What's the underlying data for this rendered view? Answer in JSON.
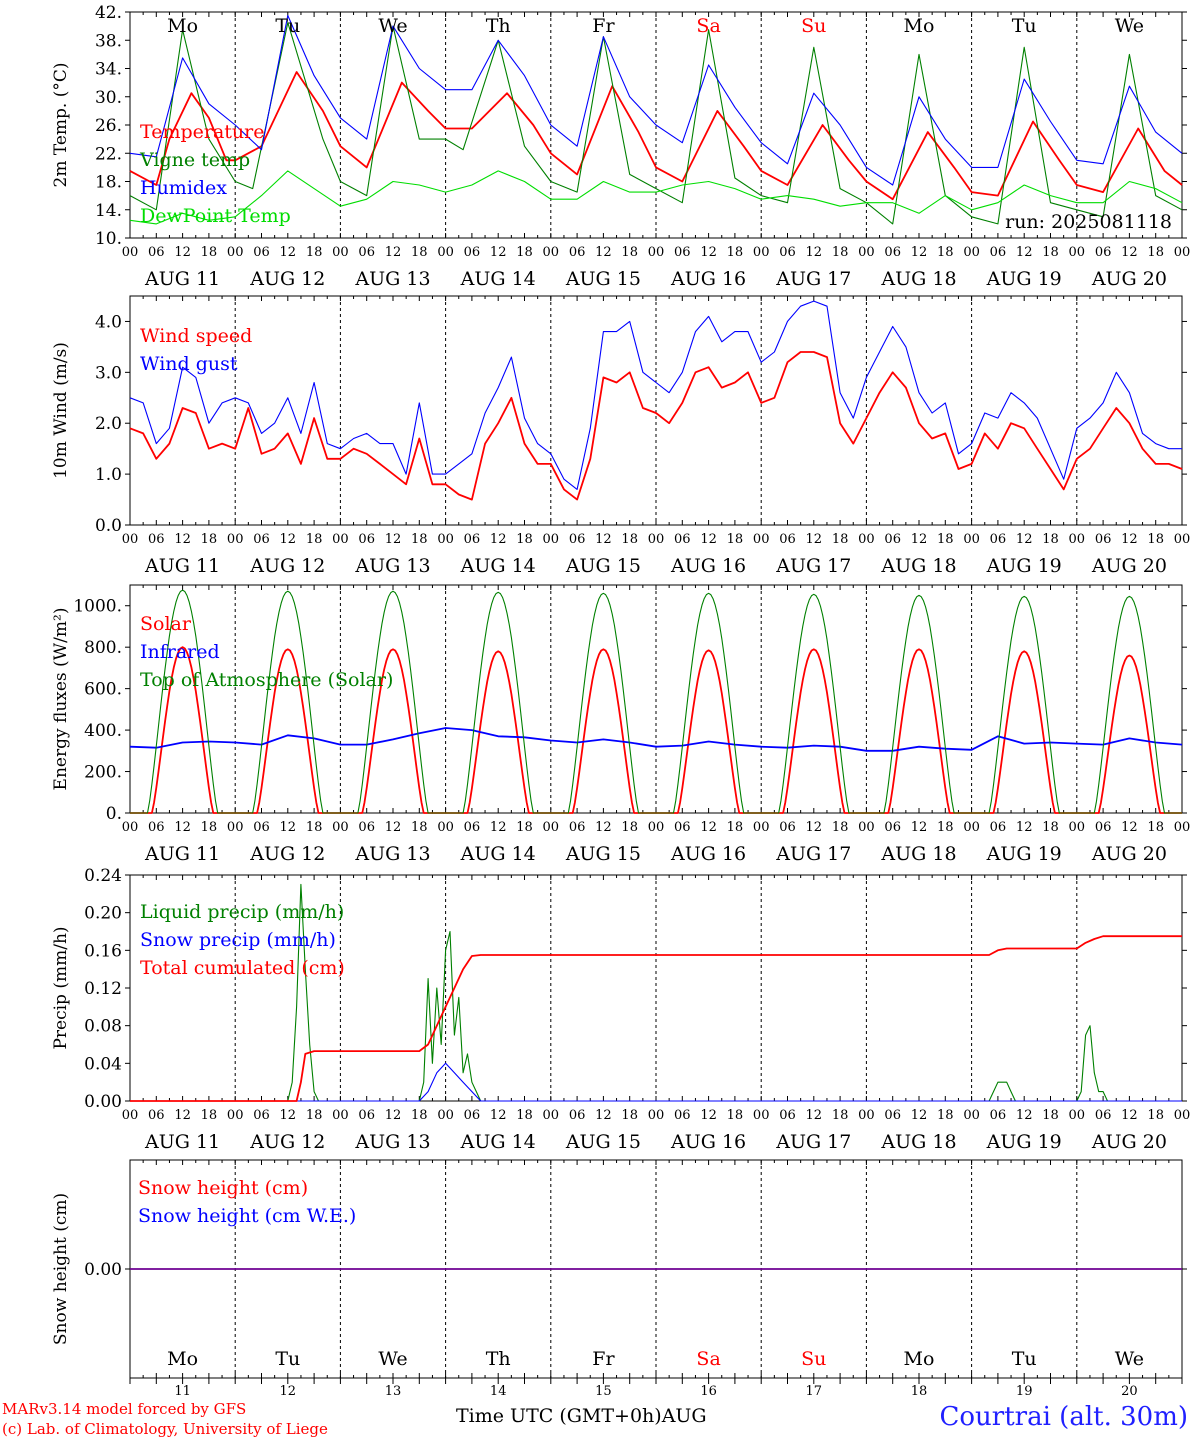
{
  "days": {
    "weekday_labels": [
      "Mo",
      "Tu",
      "We",
      "Th",
      "Fr",
      "Sa",
      "Su",
      "Mo",
      "Tu",
      "We"
    ],
    "weekend_flags": [
      false,
      false,
      false,
      false,
      false,
      true,
      true,
      false,
      false,
      false
    ],
    "date_labels": [
      "AUG 11",
      "AUG 12",
      "AUG 13",
      "AUG 14",
      "AUG 15",
      "AUG 16",
      "AUG 17",
      "AUG 18",
      "AUG 19",
      "AUG 20"
    ],
    "day_numbers": [
      "11",
      "12",
      "13",
      "14",
      "15",
      "16",
      "17",
      "18",
      "19",
      "20"
    ],
    "hour_ticks": [
      "00",
      "06",
      "12",
      "18"
    ],
    "final_hour": "00"
  },
  "colors": {
    "red": "#ff0000",
    "green": "#008000",
    "blue": "#0000ff",
    "lightgreen": "#00dd00",
    "grid": "#000000"
  },
  "footer": {
    "credit_line1": "MARv3.14 model forced by GFS",
    "credit_line2": "(c) Lab. of Climatology, University of Liege",
    "xaxis_title": "Time UTC (GMT+0h)AUG",
    "location": "Courtrai (alt. 30m)"
  },
  "chart_data": [
    {
      "type": "line",
      "ylabel": "2m Temp. (°C)",
      "ylim": [
        10,
        42
      ],
      "yticks": [
        "10.",
        "14.",
        "18.",
        "22.",
        "26.",
        "30.",
        "34.",
        "38.",
        "42."
      ],
      "run_label": "run: 2025081118",
      "x_unit": "hours since AUG 11 00 UTC",
      "series": [
        {
          "name": "Temperature",
          "color": "red",
          "x": [
            0,
            6,
            9,
            14,
            18,
            22,
            24,
            30,
            38,
            44,
            48,
            54,
            62,
            68,
            72,
            78,
            86,
            92,
            96,
            102,
            110,
            116,
            120,
            126,
            134,
            140,
            144,
            150,
            158,
            164,
            168,
            174,
            182,
            188,
            192,
            198,
            206,
            212,
            216,
            222,
            230,
            236,
            240
          ],
          "values": [
            19.5,
            17.5,
            24,
            30.5,
            27,
            21,
            21,
            23,
            33.5,
            28,
            23,
            20,
            32,
            28,
            25.5,
            25.5,
            30.5,
            26,
            22,
            19,
            31.5,
            25,
            20,
            18,
            28,
            23,
            19.5,
            17.5,
            26,
            21,
            18,
            15.5,
            25,
            20,
            16.5,
            16,
            26.5,
            21,
            17.5,
            16.5,
            25.5,
            19.5,
            17.5
          ]
        },
        {
          "name": "Vigne temp",
          "color": "green",
          "x": [
            0,
            6,
            12,
            18,
            24,
            28,
            36,
            44,
            48,
            54,
            60,
            66,
            72,
            76,
            84,
            90,
            96,
            102,
            108,
            114,
            120,
            126,
            132,
            138,
            144,
            150,
            156,
            162,
            168,
            174,
            180,
            186,
            192,
            198,
            204,
            210,
            216,
            222,
            228,
            234,
            240
          ],
          "values": [
            16,
            14,
            39.5,
            24,
            18,
            17,
            40.5,
            24,
            18,
            16,
            40,
            24,
            24,
            22.5,
            38,
            23,
            18,
            16.5,
            38.5,
            19,
            17,
            15,
            39.5,
            18.5,
            16,
            15,
            37,
            17,
            15,
            12,
            36,
            16,
            13,
            12,
            37,
            15,
            14,
            13,
            36,
            16,
            14
          ]
        },
        {
          "name": "Humidex",
          "color": "blue",
          "x": [
            0,
            6,
            12,
            18,
            24,
            30,
            36,
            42,
            48,
            54,
            60,
            66,
            72,
            78,
            84,
            90,
            96,
            102,
            108,
            114,
            120,
            126,
            132,
            138,
            144,
            150,
            156,
            162,
            168,
            174,
            180,
            186,
            192,
            198,
            204,
            210,
            216,
            222,
            228,
            234,
            240
          ],
          "values": [
            22,
            21.5,
            35.5,
            29,
            26,
            22.5,
            41.5,
            33,
            27,
            24,
            40,
            34,
            31,
            31,
            38,
            33,
            26,
            23,
            38.5,
            30,
            26,
            23.5,
            34.5,
            28.5,
            23.5,
            20.5,
            30.5,
            26,
            20,
            17.5,
            30,
            24,
            20,
            20,
            32.5,
            26.5,
            21,
            20.5,
            31.5,
            25,
            22
          ]
        },
        {
          "name": "DewPoint Temp",
          "color": "lightgreen",
          "x": [
            0,
            6,
            12,
            18,
            24,
            30,
            36,
            42,
            48,
            54,
            60,
            66,
            72,
            78,
            84,
            90,
            96,
            102,
            108,
            114,
            120,
            126,
            132,
            138,
            144,
            150,
            156,
            162,
            168,
            174,
            180,
            186,
            192,
            198,
            204,
            210,
            216,
            222,
            228,
            234,
            240
          ],
          "values": [
            12.5,
            12,
            13.5,
            12.5,
            13,
            16,
            19.5,
            17,
            14.5,
            15.5,
            18,
            17.5,
            16.5,
            17.5,
            19.5,
            18,
            15.5,
            15.5,
            18,
            16.5,
            16.5,
            17.5,
            18,
            17,
            15.5,
            16,
            15.5,
            14.5,
            15,
            15,
            13.5,
            16,
            14,
            15,
            17.5,
            16,
            15,
            15,
            18,
            17,
            15
          ]
        }
      ]
    },
    {
      "type": "line",
      "ylabel": "10m Wind (m/s)",
      "ylim": [
        0,
        4.5
      ],
      "yticks": [
        "0.0",
        "1.0",
        "2.0",
        "3.0",
        "4.0"
      ],
      "series": [
        {
          "name": "Wind speed",
          "color": "red",
          "x": [
            0,
            3,
            6,
            9,
            12,
            15,
            18,
            21,
            24,
            27,
            30,
            33,
            36,
            39,
            42,
            45,
            48,
            51,
            54,
            57,
            60,
            63,
            66,
            69,
            72,
            75,
            78,
            81,
            84,
            87,
            90,
            93,
            96,
            99,
            102,
            105,
            108,
            111,
            114,
            117,
            120,
            123,
            126,
            129,
            132,
            135,
            138,
            141,
            144,
            147,
            150,
            153,
            156,
            159,
            162,
            165,
            168,
            171,
            174,
            177,
            180,
            183,
            186,
            189,
            192,
            195,
            198,
            201,
            204,
            207,
            210,
            213,
            216,
            219,
            222,
            225,
            228,
            231,
            234,
            237,
            240
          ],
          "values": [
            1.9,
            1.8,
            1.3,
            1.6,
            2.3,
            2.2,
            1.5,
            1.6,
            1.5,
            2.3,
            1.4,
            1.5,
            1.8,
            1.2,
            2.1,
            1.3,
            1.3,
            1.5,
            1.4,
            1.2,
            1.0,
            0.8,
            1.7,
            0.8,
            0.8,
            0.6,
            0.5,
            1.6,
            2.0,
            2.5,
            1.6,
            1.2,
            1.2,
            0.7,
            0.5,
            1.3,
            2.9,
            2.8,
            3.0,
            2.3,
            2.2,
            2.0,
            2.4,
            3.0,
            3.1,
            2.7,
            2.8,
            3.0,
            2.4,
            2.5,
            3.2,
            3.4,
            3.4,
            3.3,
            2.0,
            1.6,
            2.1,
            2.6,
            3.0,
            2.7,
            2.0,
            1.7,
            1.8,
            1.1,
            1.2,
            1.8,
            1.5,
            2.0,
            1.9,
            1.5,
            1.1,
            0.7,
            1.3,
            1.5,
            1.9,
            2.3,
            2.0,
            1.5,
            1.2,
            1.2,
            1.1
          ]
        },
        {
          "name": "Wind gust",
          "color": "blue",
          "x": [
            0,
            3,
            6,
            9,
            12,
            15,
            18,
            21,
            24,
            27,
            30,
            33,
            36,
            39,
            42,
            45,
            48,
            51,
            54,
            57,
            60,
            63,
            66,
            69,
            72,
            75,
            78,
            81,
            84,
            87,
            90,
            93,
            96,
            99,
            102,
            105,
            108,
            111,
            114,
            117,
            120,
            123,
            126,
            129,
            132,
            135,
            138,
            141,
            144,
            147,
            150,
            153,
            156,
            159,
            162,
            165,
            168,
            171,
            174,
            177,
            180,
            183,
            186,
            189,
            192,
            195,
            198,
            201,
            204,
            207,
            210,
            213,
            216,
            219,
            222,
            225,
            228,
            231,
            234,
            237,
            240
          ],
          "values": [
            2.5,
            2.4,
            1.6,
            1.9,
            3.1,
            2.9,
            2.0,
            2.4,
            2.5,
            2.4,
            1.8,
            2.0,
            2.5,
            1.8,
            2.8,
            1.6,
            1.5,
            1.7,
            1.8,
            1.6,
            1.6,
            1.0,
            2.4,
            1.0,
            1.0,
            1.2,
            1.4,
            2.2,
            2.7,
            3.3,
            2.1,
            1.6,
            1.4,
            0.9,
            0.7,
            1.9,
            3.8,
            3.8,
            4.0,
            3.0,
            2.8,
            2.6,
            3.0,
            3.8,
            4.1,
            3.6,
            3.8,
            3.8,
            3.2,
            3.4,
            4.0,
            4.3,
            4.4,
            4.3,
            2.6,
            2.1,
            2.9,
            3.4,
            3.9,
            3.5,
            2.6,
            2.2,
            2.4,
            1.4,
            1.6,
            2.2,
            2.1,
            2.6,
            2.4,
            2.1,
            1.5,
            0.9,
            1.9,
            2.1,
            2.4,
            3.0,
            2.6,
            1.8,
            1.6,
            1.5,
            1.5
          ]
        }
      ]
    },
    {
      "type": "line",
      "ylabel": "Energy fluxes (W/m²)",
      "ylim": [
        0,
        1100
      ],
      "yticks": [
        "0.",
        "200.",
        "400.",
        "600.",
        "800.",
        "1000."
      ],
      "series": [
        {
          "name": "Solar",
          "color": "red",
          "peaks": [
            800,
            790,
            790,
            780,
            790,
            785,
            790,
            790,
            780,
            760
          ],
          "day_start_h": 5,
          "day_end_h": 19
        },
        {
          "name": "Infrared",
          "color": "blue",
          "x": [
            0,
            6,
            12,
            18,
            24,
            30,
            36,
            42,
            48,
            54,
            60,
            66,
            72,
            78,
            84,
            90,
            96,
            102,
            108,
            114,
            120,
            126,
            132,
            138,
            144,
            150,
            156,
            162,
            168,
            174,
            180,
            186,
            192,
            198,
            204,
            210,
            216,
            222,
            228,
            234,
            240
          ],
          "values": [
            320,
            315,
            340,
            345,
            340,
            330,
            375,
            360,
            330,
            330,
            355,
            385,
            410,
            400,
            370,
            365,
            350,
            340,
            355,
            340,
            320,
            325,
            345,
            330,
            320,
            315,
            325,
            320,
            300,
            300,
            320,
            310,
            305,
            370,
            335,
            340,
            335,
            330,
            360,
            340,
            330
          ]
        },
        {
          "name": "Top of Atmosphere (Solar)",
          "color": "green",
          "peaks": [
            1075,
            1070,
            1070,
            1065,
            1060,
            1060,
            1055,
            1050,
            1045,
            1045
          ],
          "day_start_h": 4,
          "day_end_h": 20
        }
      ]
    },
    {
      "type": "line",
      "ylabel": "Precip (mm/h)",
      "ylim": [
        0,
        0.24
      ],
      "yticks": [
        "0.00",
        "0.04",
        "0.08",
        "0.12",
        "0.16",
        "0.20",
        "0.24"
      ],
      "series": [
        {
          "name": "Liquid precip (mm/h)",
          "color": "green",
          "x": [
            0,
            36,
            37,
            38,
            39,
            40,
            41,
            42,
            43,
            44,
            45,
            46,
            66,
            67,
            68,
            69,
            70,
            71,
            72,
            73,
            74,
            75,
            76,
            77,
            78,
            79,
            80,
            196,
            197,
            198,
            199,
            200,
            201,
            202,
            216,
            217,
            218,
            219,
            220,
            221,
            222,
            223,
            224,
            240
          ],
          "values": [
            0,
            0,
            0.02,
            0.1,
            0.23,
            0.14,
            0.06,
            0.01,
            0,
            0,
            0,
            0,
            0,
            0.02,
            0.13,
            0.04,
            0.12,
            0.06,
            0.16,
            0.18,
            0.07,
            0.11,
            0.03,
            0.05,
            0.02,
            0.01,
            0,
            0,
            0.01,
            0.02,
            0.02,
            0.02,
            0.01,
            0,
            0,
            0.01,
            0.07,
            0.08,
            0.03,
            0.01,
            0.01,
            0,
            0,
            0
          ]
        },
        {
          "name": "Snow precip (mm/h)",
          "color": "blue",
          "x": [
            0,
            66,
            68,
            70,
            72,
            74,
            76,
            78,
            80,
            240
          ],
          "values": [
            0,
            0,
            0.01,
            0.03,
            0.04,
            0.03,
            0.02,
            0.01,
            0,
            0
          ]
        },
        {
          "name": "Total cumulated (cm)",
          "color": "red",
          "x": [
            0,
            38,
            39,
            40,
            42,
            60,
            66,
            68,
            70,
            72,
            74,
            76,
            78,
            80,
            196,
            198,
            200,
            216,
            218,
            220,
            222,
            240
          ],
          "values": [
            0,
            0,
            0.02,
            0.05,
            0.053,
            0.053,
            0.053,
            0.06,
            0.08,
            0.1,
            0.12,
            0.14,
            0.154,
            0.155,
            0.155,
            0.16,
            0.162,
            0.162,
            0.168,
            0.172,
            0.175,
            0.175
          ]
        }
      ]
    },
    {
      "type": "line",
      "ylabel": "Snow height (cm)",
      "ylim": [
        -0.1,
        0.1
      ],
      "yticks": [
        "0.00"
      ],
      "series": [
        {
          "name": "Snow height (cm)",
          "color": "red",
          "x": [
            0,
            240
          ],
          "values": [
            0,
            0
          ]
        },
        {
          "name": "Snow height (cm W.E.)",
          "color": "blue",
          "x": [
            0,
            240
          ],
          "values": [
            0,
            0
          ]
        }
      ]
    }
  ]
}
